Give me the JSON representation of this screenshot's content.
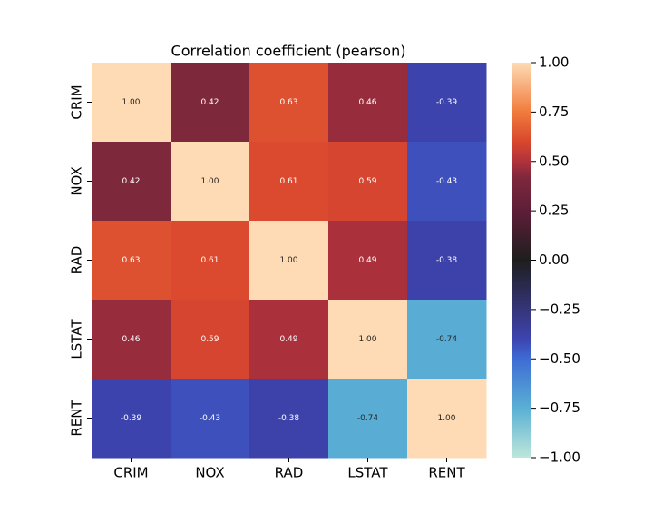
{
  "chart_data": {
    "type": "heatmap",
    "title": "Correlation coefficient (pearson)",
    "x_categories": [
      "CRIM",
      "NOX",
      "RAD",
      "LSTAT",
      "RENT"
    ],
    "y_categories": [
      "CRIM",
      "NOX",
      "RAD",
      "LSTAT",
      "RENT"
    ],
    "values": [
      [
        1.0,
        0.42,
        0.63,
        0.46,
        -0.39
      ],
      [
        0.42,
        1.0,
        0.61,
        0.59,
        -0.43
      ],
      [
        0.63,
        0.61,
        1.0,
        0.49,
        -0.38
      ],
      [
        0.46,
        0.59,
        0.49,
        1.0,
        -0.74
      ],
      [
        -0.39,
        -0.43,
        -0.38,
        -0.74,
        1.0
      ]
    ],
    "value_labels": [
      [
        "1.00",
        "0.42",
        "0.63",
        "0.46",
        "-0.39"
      ],
      [
        "0.42",
        "1.00",
        "0.61",
        "0.59",
        "-0.43"
      ],
      [
        "0.63",
        "0.61",
        "1.00",
        "0.49",
        "-0.38"
      ],
      [
        "0.46",
        "0.59",
        "0.49",
        "1.00",
        "-0.74"
      ],
      [
        "-0.39",
        "-0.43",
        "-0.38",
        "-0.74",
        "1.00"
      ]
    ],
    "clim": [
      -1,
      1
    ],
    "cticks": [
      {
        "value": -1,
        "label": "−1.00"
      },
      {
        "value": -0.75,
        "label": "−0.75"
      },
      {
        "value": -0.5,
        "label": "−0.50"
      },
      {
        "value": -0.25,
        "label": "−0.25"
      },
      {
        "value": 0,
        "label": "0.00"
      },
      {
        "value": 0.25,
        "label": "0.25"
      },
      {
        "value": 0.5,
        "label": "0.50"
      },
      {
        "value": 0.75,
        "label": "0.75"
      },
      {
        "value": 1,
        "label": "1.00"
      }
    ],
    "colorscale": [
      [
        -1,
        "#bde7db"
      ],
      [
        -0.75,
        "#5ab0d4"
      ],
      [
        -0.5,
        "#3e6cd4"
      ],
      [
        -0.4,
        "#3d44b0"
      ],
      [
        -0.25,
        "#35357a"
      ],
      [
        0,
        "#1e1e1e"
      ],
      [
        0.25,
        "#5e1e38"
      ],
      [
        0.42,
        "#7e283c"
      ],
      [
        0.5,
        "#b0323c"
      ],
      [
        0.6,
        "#d9472d"
      ],
      [
        0.75,
        "#f07b3c"
      ],
      [
        1,
        "#fedbb4"
      ]
    ]
  }
}
